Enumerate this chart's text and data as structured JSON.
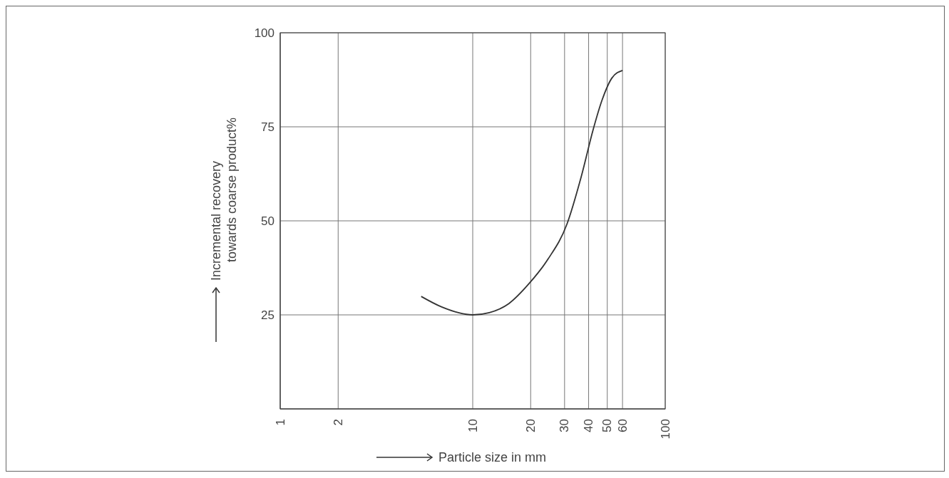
{
  "chart_data": {
    "type": "line",
    "xlabel": "Particle size in mm",
    "ylabel": "Incremental recovery\ntowards coarse product%",
    "log": "x",
    "grid": true,
    "marker": "none",
    "line_style": "solid",
    "xlim": [
      1,
      100
    ],
    "xticks": [
      1,
      2,
      10,
      20,
      30,
      40,
      50,
      60,
      100
    ],
    "ylim": [
      0,
      100
    ],
    "yticks": [
      25,
      50,
      75,
      100
    ],
    "x": [
      5.4,
      6.9,
      10,
      12.2,
      15.4,
      19.6,
      24.6,
      30.9,
      36.6,
      42.3,
      46.9,
      52.9,
      60
    ],
    "series": [
      {
        "color": "#333333",
        "values": [
          29.9,
          27.1,
          25,
          25.6,
          28,
          33.3,
          39.8,
          49.2,
          61.7,
          74.4,
          82,
          88,
          90
        ]
      }
    ]
  }
}
